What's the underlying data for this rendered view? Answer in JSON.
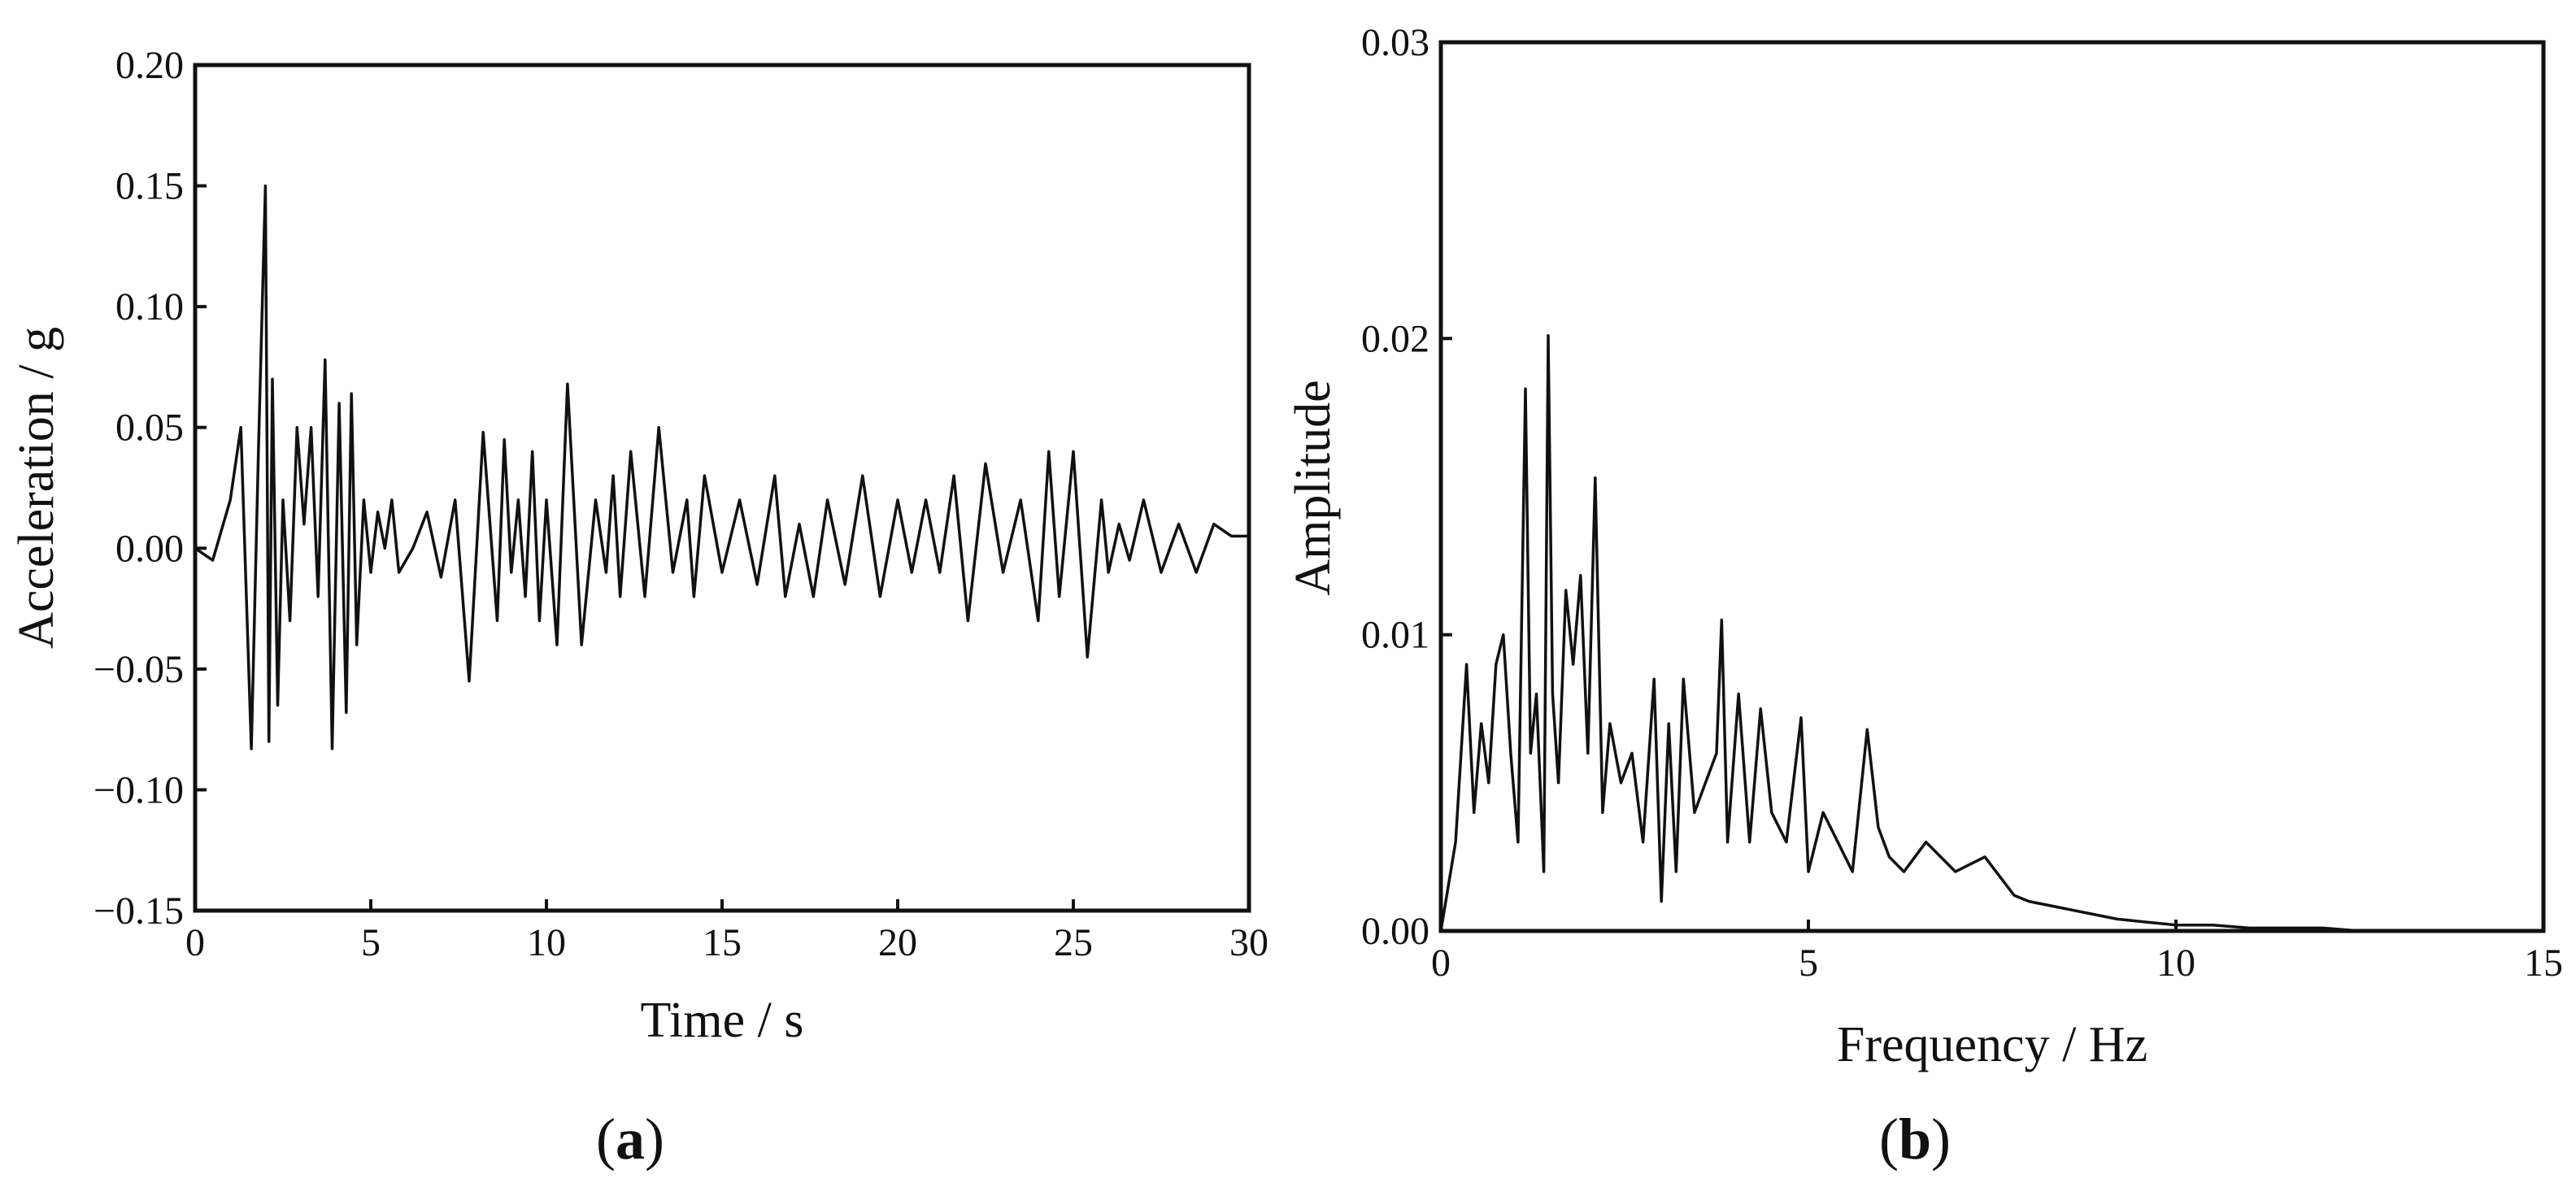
{
  "panels": [
    {
      "label_open": "(",
      "label_letter": "a",
      "label_close": ")"
    },
    {
      "label_open": "(",
      "label_letter": "b",
      "label_close": ")"
    }
  ],
  "chart_data": [
    {
      "type": "line",
      "title": "",
      "xlabel": "Time / s",
      "ylabel": "Acceleration / g",
      "xlim": [
        0,
        30
      ],
      "ylim": [
        -0.15,
        0.2
      ],
      "xticks": [
        "0",
        "5",
        "10",
        "15",
        "20",
        "25",
        "30"
      ],
      "yticks": [
        "−0.15",
        "−0.10",
        "−0.05",
        "0.00",
        "0.05",
        "0.10",
        "0.15",
        "0.20"
      ],
      "grid": false,
      "series": [
        {
          "x": [
            0,
            0.5,
            1,
            1.3,
            1.6,
            1.8,
            2.0,
            2.1,
            2.2,
            2.35,
            2.5,
            2.7,
            2.9,
            3.1,
            3.3,
            3.5,
            3.7,
            3.9,
            4.1,
            4.3,
            4.45,
            4.6,
            4.8,
            5.0,
            5.2,
            5.4,
            5.6,
            5.8,
            6.2,
            6.6,
            7.0,
            7.4,
            7.8,
            8.2,
            8.6,
            8.8,
            9.0,
            9.2,
            9.4,
            9.6,
            9.8,
            10.0,
            10.3,
            10.6,
            11.0,
            11.4,
            11.7,
            11.9,
            12.1,
            12.4,
            12.8,
            13.2,
            13.6,
            14.0,
            14.2,
            14.5,
            15.0,
            15.5,
            16.0,
            16.5,
            16.8,
            17.2,
            17.6,
            18.0,
            18.5,
            19.0,
            19.5,
            20.0,
            20.4,
            20.8,
            21.2,
            21.6,
            22.0,
            22.5,
            23.0,
            23.5,
            24.0,
            24.3,
            24.6,
            25.0,
            25.4,
            25.8,
            26.0,
            26.3,
            26.6,
            27.0,
            27.5,
            28.0,
            28.5,
            29.0,
            29.5,
            30.0
          ],
          "y": [
            0,
            -0.005,
            0.02,
            0.05,
            -0.083,
            0.04,
            0.15,
            -0.08,
            0.07,
            -0.065,
            0.02,
            -0.03,
            0.05,
            0.01,
            0.05,
            -0.02,
            0.078,
            -0.083,
            0.06,
            -0.068,
            0.064,
            -0.04,
            0.02,
            -0.01,
            0.015,
            0.0,
            0.02,
            -0.01,
            0.0,
            0.015,
            -0.012,
            0.02,
            -0.055,
            0.048,
            -0.03,
            0.045,
            -0.01,
            0.02,
            -0.02,
            0.04,
            -0.03,
            0.02,
            -0.04,
            0.068,
            -0.04,
            0.02,
            -0.01,
            0.03,
            -0.02,
            0.04,
            -0.02,
            0.05,
            -0.01,
            0.02,
            -0.02,
            0.03,
            -0.01,
            0.02,
            -0.015,
            0.03,
            -0.02,
            0.01,
            -0.02,
            0.02,
            -0.015,
            0.03,
            -0.02,
            0.02,
            -0.01,
            0.02,
            -0.01,
            0.03,
            -0.03,
            0.035,
            -0.01,
            0.02,
            -0.03,
            0.04,
            -0.02,
            0.04,
            -0.045,
            0.02,
            -0.01,
            0.01,
            -0.005,
            0.02,
            -0.01,
            0.01,
            -0.01,
            0.01,
            0.005,
            0.005
          ]
        }
      ]
    },
    {
      "type": "line",
      "title": "",
      "xlabel": "Frequency / Hz",
      "ylabel": "Amplitude",
      "xlim": [
        0,
        15
      ],
      "ylim": [
        0,
        0.03
      ],
      "xticks": [
        "0",
        "5",
        "10",
        "15"
      ],
      "yticks": [
        "0.00",
        "0.01",
        "0.02",
        "0.03"
      ],
      "grid": false,
      "series": [
        {
          "x": [
            0,
            0.2,
            0.35,
            0.45,
            0.55,
            0.65,
            0.75,
            0.85,
            0.95,
            1.05,
            1.15,
            1.22,
            1.3,
            1.4,
            1.46,
            1.52,
            1.6,
            1.7,
            1.8,
            1.9,
            2.0,
            2.1,
            2.2,
            2.3,
            2.45,
            2.6,
            2.75,
            2.9,
            3.0,
            3.1,
            3.2,
            3.3,
            3.45,
            3.6,
            3.75,
            3.82,
            3.9,
            4.05,
            4.2,
            4.35,
            4.5,
            4.7,
            4.9,
            5.0,
            5.2,
            5.4,
            5.6,
            5.8,
            5.95,
            6.1,
            6.3,
            6.6,
            7.0,
            7.4,
            7.8,
            8.0,
            8.4,
            8.8,
            9.2,
            9.6,
            10.0,
            10.5,
            11.0,
            11.5,
            12.0,
            12.5,
            13.0,
            13.5,
            14.0,
            15.0
          ],
          "y": [
            0.0,
            0.003,
            0.009,
            0.004,
            0.007,
            0.005,
            0.009,
            0.01,
            0.006,
            0.003,
            0.0183,
            0.006,
            0.008,
            0.002,
            0.0201,
            0.008,
            0.005,
            0.0115,
            0.009,
            0.012,
            0.006,
            0.0153,
            0.004,
            0.007,
            0.005,
            0.006,
            0.003,
            0.0085,
            0.001,
            0.007,
            0.002,
            0.0085,
            0.004,
            0.005,
            0.006,
            0.0105,
            0.003,
            0.008,
            0.003,
            0.0075,
            0.004,
            0.003,
            0.0072,
            0.002,
            0.004,
            0.003,
            0.002,
            0.0068,
            0.0035,
            0.0025,
            0.002,
            0.003,
            0.002,
            0.0025,
            0.0012,
            0.001,
            0.0008,
            0.0006,
            0.0004,
            0.0003,
            0.0002,
            0.0002,
            0.0001,
            0.0001,
            0.0001,
            0.0,
            0.0,
            0.0,
            0.0,
            0.0
          ]
        }
      ]
    }
  ]
}
